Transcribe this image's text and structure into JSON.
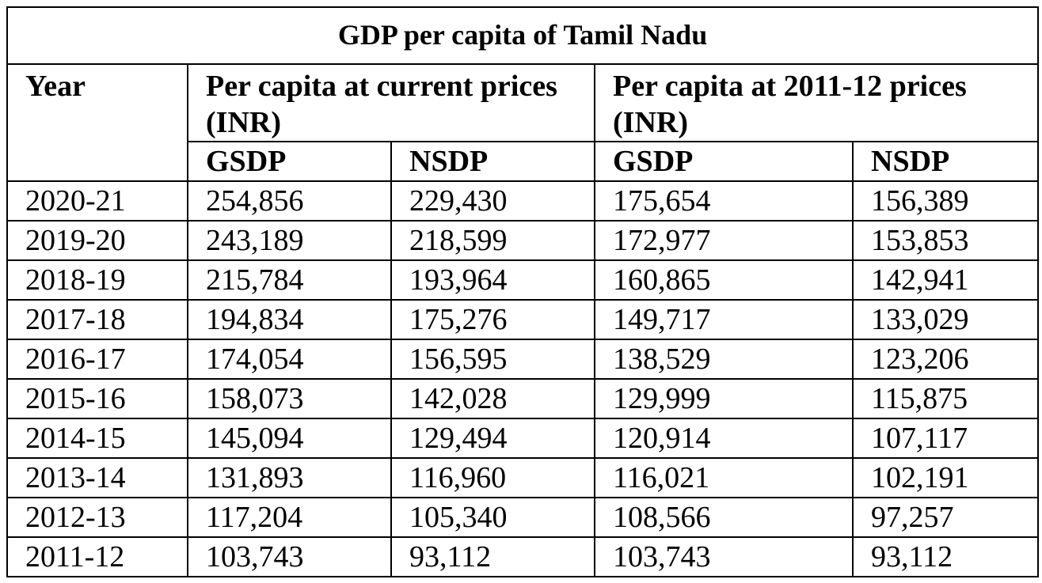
{
  "table": {
    "title": "GDP per capita of Tamil Nadu",
    "header": {
      "year": "Year",
      "current_group": "Per capita at current prices (INR)",
      "constant_group": "Per capita at 2011-12 prices (INR)",
      "current_gsdp": "GSDP",
      "current_nsdp": "NSDP",
      "constant_gsdp": "GSDP",
      "constant_nsdp": "NSDP"
    },
    "rows": [
      {
        "year": "2020-21",
        "cur_gsdp": "254,856",
        "cur_nsdp": "229,430",
        "con_gsdp": "175,654",
        "con_nsdp": "156,389"
      },
      {
        "year": "2019-20",
        "cur_gsdp": "243,189",
        "cur_nsdp": "218,599",
        "con_gsdp": "172,977",
        "con_nsdp": "153,853"
      },
      {
        "year": "2018-19",
        "cur_gsdp": "215,784",
        "cur_nsdp": "193,964",
        "con_gsdp": "160,865",
        "con_nsdp": "142,941"
      },
      {
        "year": "2017-18",
        "cur_gsdp": "194,834",
        "cur_nsdp": "175,276",
        "con_gsdp": "149,717",
        "con_nsdp": "133,029"
      },
      {
        "year": "2016-17",
        "cur_gsdp": "174,054",
        "cur_nsdp": "156,595",
        "con_gsdp": "138,529",
        "con_nsdp": "123,206"
      },
      {
        "year": "2015-16",
        "cur_gsdp": "158,073",
        "cur_nsdp": "142,028",
        "con_gsdp": "129,999",
        "con_nsdp": "115,875"
      },
      {
        "year": "2014-15",
        "cur_gsdp": "145,094",
        "cur_nsdp": "129,494",
        "con_gsdp": "120,914",
        "con_nsdp": "107,117"
      },
      {
        "year": "2013-14",
        "cur_gsdp": "131,893",
        "cur_nsdp": "116,960",
        "con_gsdp": "116,021",
        "con_nsdp": "102,191"
      },
      {
        "year": "2012-13",
        "cur_gsdp": "117,204",
        "cur_nsdp": "105,340",
        "con_gsdp": "108,566",
        "con_nsdp": "97,257"
      },
      {
        "year": "2011-12",
        "cur_gsdp": "103,743",
        "cur_nsdp": "93,112",
        "con_gsdp": "103,743",
        "con_nsdp": "93,112"
      }
    ]
  }
}
